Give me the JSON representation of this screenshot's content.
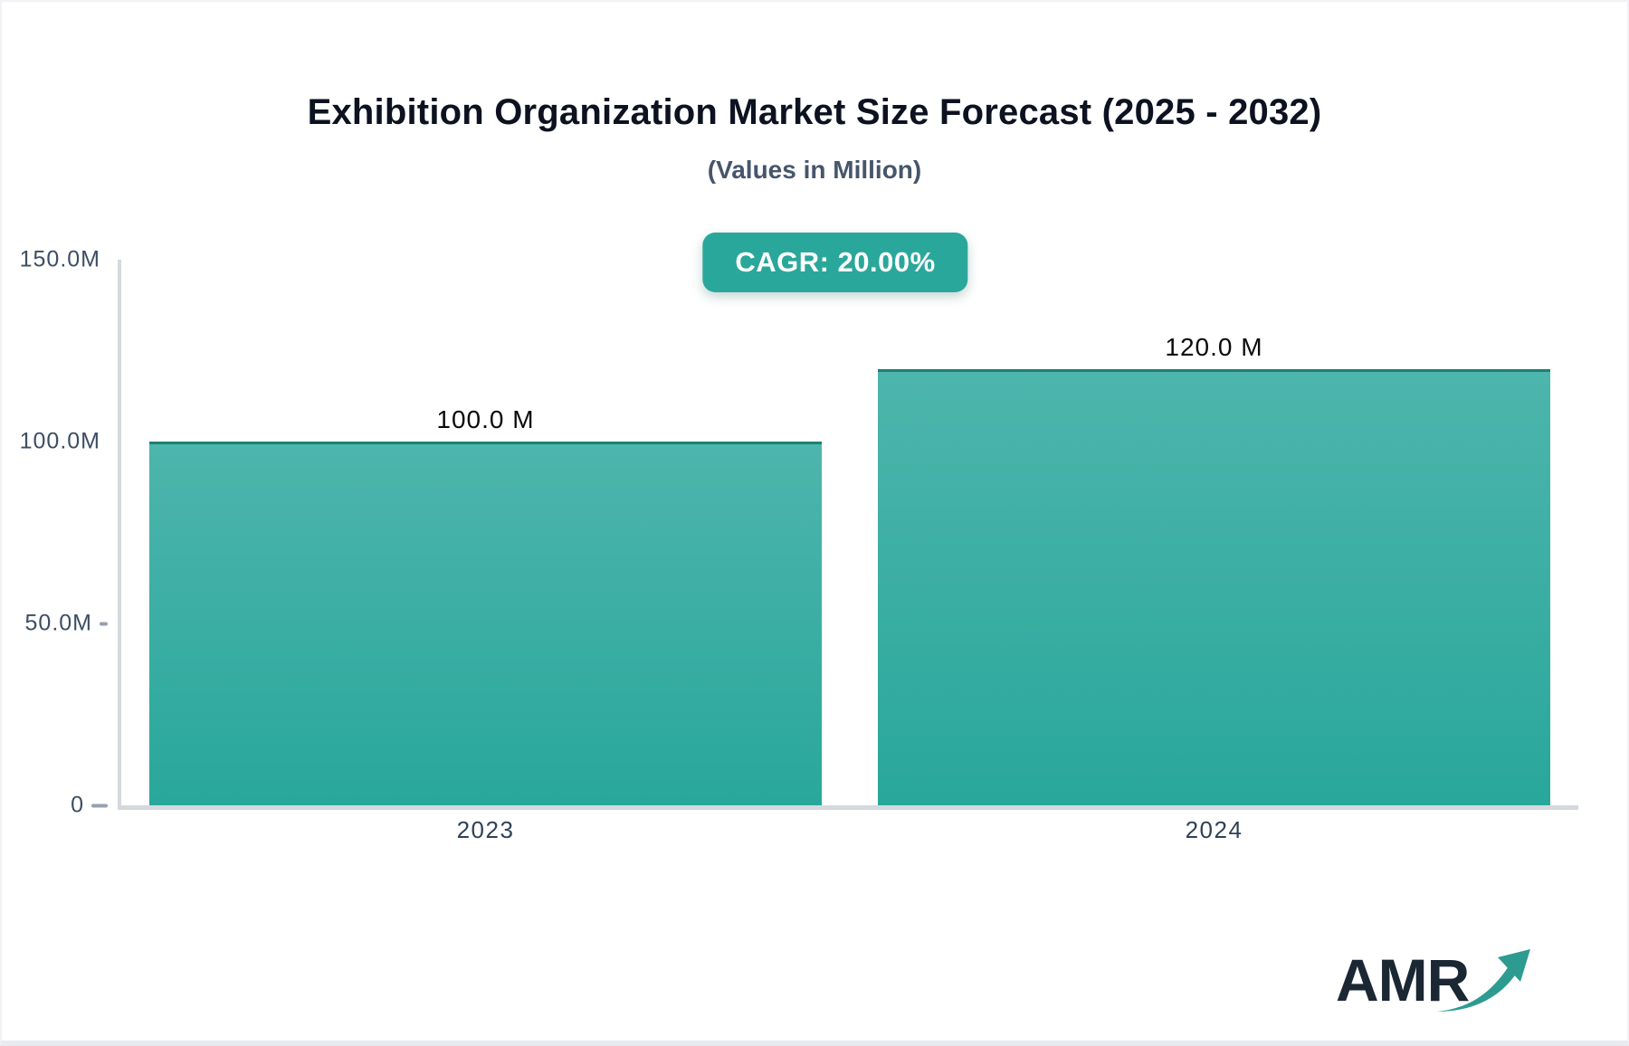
{
  "header": {
    "title": "Exhibition Organization Market Size Forecast (2025 - 2032)",
    "subtitle": "(Values in Million)",
    "cagr_badge": "CAGR: 20.00%",
    "badge_color": "#2aa79b"
  },
  "chart_data": {
    "type": "bar",
    "title": "Exhibition Organization Market Size Forecast (2025 - 2032)",
    "subtitle": "(Values in Million)",
    "unit": "Million",
    "categories": [
      "2023",
      "2024"
    ],
    "values": [
      100.0,
      120.0
    ],
    "value_labels": [
      "100.0 M",
      "120.0 M"
    ],
    "ylim": [
      0,
      150
    ],
    "yticks": [
      {
        "label": "150.0M",
        "value": 150,
        "dash": "none"
      },
      {
        "label": "100.0M",
        "value": 100,
        "dash": "none"
      },
      {
        "label": "50.0M",
        "value": 50,
        "dash": "short"
      },
      {
        "label": "0",
        "value": 0,
        "dash": "long"
      }
    ],
    "grid": false,
    "legend": false,
    "bar_color_top": "#4db5ac",
    "bar_color_bottom": "#29a79b",
    "bar_border_color": "#1d8175",
    "axis_line_color": "#d5d9de"
  },
  "footer": {
    "logo_text": "AMR",
    "logo_text_color": "#1b2733",
    "logo_arrow_color": "#2e9b91"
  }
}
